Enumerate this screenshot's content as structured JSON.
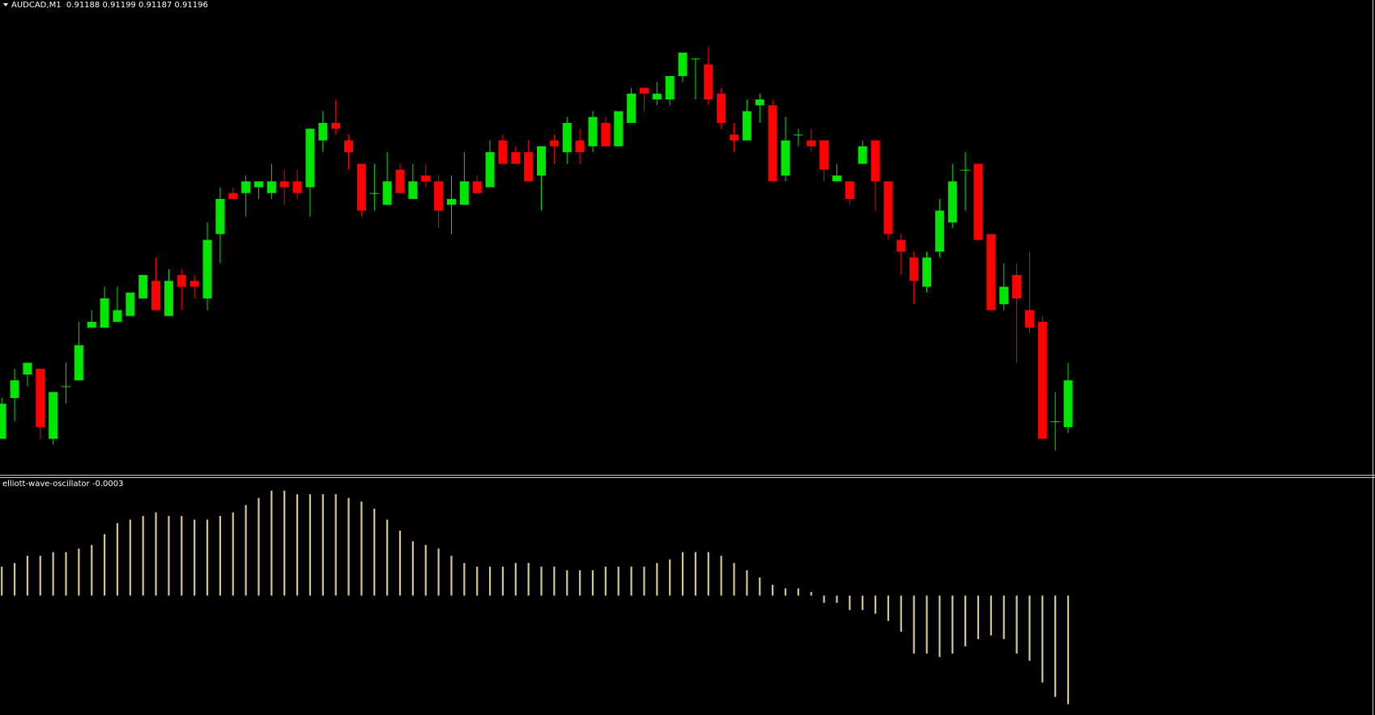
{
  "chart_data": [
    {
      "type": "candlestick",
      "title": "AUDCAD,M1  0.91188 0.91199 0.91187 0.91196",
      "up_color": "#00e600",
      "down_color": "#ff0000",
      "ylim": [
        0.9118,
        0.91261
      ],
      "open": [
        0.91186,
        0.91193,
        0.91197,
        0.91198,
        0.91186,
        0.91195,
        0.91196,
        0.91205,
        0.91205,
        0.91206,
        0.91207,
        0.9121,
        0.91213,
        0.91207,
        0.91214,
        0.91213,
        0.9121,
        0.91221,
        0.91228,
        0.91228,
        0.91229,
        0.91228,
        0.9123,
        0.9123,
        0.91229,
        0.91237,
        0.9124,
        0.91237,
        0.91233,
        0.91228,
        0.91226,
        0.91232,
        0.91227,
        0.91231,
        0.9123,
        0.91226,
        0.91226,
        0.9123,
        0.91229,
        0.91237,
        0.91235,
        0.91235,
        0.91231,
        0.91237,
        0.91235,
        0.91237,
        0.91236,
        0.9124,
        0.91236,
        0.9124,
        0.91246,
        0.91244,
        0.91244,
        0.91248,
        0.91251,
        0.9125,
        0.91245,
        0.91238,
        0.91237,
        0.91243,
        0.91243,
        0.91231,
        0.91238,
        0.91237,
        0.91237,
        0.9123,
        0.9123,
        0.91233,
        0.91237,
        0.9123,
        0.9122,
        0.91217,
        0.91212,
        0.91218,
        0.91223,
        0.91232,
        0.91233,
        0.91221,
        0.91209,
        0.91214,
        0.91208,
        0.91206,
        0.91189,
        0.91188
      ],
      "high": [
        0.91193,
        0.91198,
        0.91199,
        0.91198,
        0.91194,
        0.91199,
        0.91206,
        0.91208,
        0.91212,
        0.91212,
        0.91211,
        0.91214,
        0.91217,
        0.91215,
        0.91215,
        0.91214,
        0.91223,
        0.91229,
        0.91229,
        0.91231,
        0.9123,
        0.91233,
        0.91232,
        0.91232,
        0.91239,
        0.91242,
        0.91244,
        0.91238,
        0.91233,
        0.91233,
        0.91235,
        0.91233,
        0.91233,
        0.91233,
        0.91231,
        0.91231,
        0.91235,
        0.91231,
        0.91237,
        0.91238,
        0.91236,
        0.91237,
        0.91236,
        0.91238,
        0.91241,
        0.91239,
        0.91242,
        0.91241,
        0.91242,
        0.91246,
        0.91246,
        0.91247,
        0.91248,
        0.91252,
        0.91251,
        0.91253,
        0.91246,
        0.9124,
        0.91244,
        0.91245,
        0.91244,
        0.91241,
        0.91239,
        0.91239,
        0.91237,
        0.91233,
        0.9123,
        0.91237,
        0.91237,
        0.9123,
        0.91221,
        0.91218,
        0.91218,
        0.91227,
        0.91233,
        0.91235,
        0.91233,
        0.91221,
        0.91216,
        0.91216,
        0.91218,
        0.91207,
        0.91194,
        0.91199
      ],
      "low": [
        0.91186,
        0.91189,
        0.91195,
        0.91186,
        0.91185,
        0.91192,
        0.91196,
        0.91205,
        0.91205,
        0.91206,
        0.91207,
        0.9121,
        0.91208,
        0.91207,
        0.91208,
        0.9121,
        0.91208,
        0.91216,
        0.91227,
        0.91224,
        0.91227,
        0.91227,
        0.91226,
        0.91227,
        0.91224,
        0.91235,
        0.91238,
        0.91232,
        0.91224,
        0.91225,
        0.91226,
        0.91228,
        0.91227,
        0.91229,
        0.91222,
        0.91221,
        0.91226,
        0.91228,
        0.91229,
        0.91233,
        0.91233,
        0.9123,
        0.91225,
        0.91233,
        0.91233,
        0.91233,
        0.91235,
        0.91236,
        0.91236,
        0.9124,
        0.91242,
        0.91243,
        0.91243,
        0.91247,
        0.91244,
        0.91243,
        0.91239,
        0.91235,
        0.91237,
        0.9124,
        0.9123,
        0.9123,
        0.91236,
        0.91235,
        0.9123,
        0.9123,
        0.91226,
        0.91233,
        0.91225,
        0.9122,
        0.91214,
        0.91209,
        0.91211,
        0.91217,
        0.91222,
        0.91225,
        0.9122,
        0.91208,
        0.91208,
        0.91199,
        0.91204,
        0.91186,
        0.91184,
        0.91187
      ],
      "close": [
        0.91192,
        0.91196,
        0.91199,
        0.91188,
        0.91194,
        0.91195,
        0.91202,
        0.91206,
        0.9121,
        0.91208,
        0.91211,
        0.91214,
        0.91208,
        0.91213,
        0.91212,
        0.91212,
        0.9122,
        0.91227,
        0.91227,
        0.9123,
        0.9123,
        0.9123,
        0.91229,
        0.91228,
        0.91239,
        0.9124,
        0.91239,
        0.91235,
        0.91225,
        0.91228,
        0.9123,
        0.91228,
        0.9123,
        0.9123,
        0.91225,
        0.91227,
        0.9123,
        0.91228,
        0.91235,
        0.91233,
        0.91233,
        0.9123,
        0.91236,
        0.91236,
        0.9124,
        0.91235,
        0.91241,
        0.91236,
        0.91242,
        0.91245,
        0.91245,
        0.91245,
        0.91248,
        0.91252,
        0.91251,
        0.91244,
        0.9124,
        0.91237,
        0.91242,
        0.91244,
        0.9123,
        0.91237,
        0.91238,
        0.91236,
        0.91232,
        0.91231,
        0.91227,
        0.91236,
        0.9123,
        0.91221,
        0.91218,
        0.91213,
        0.91217,
        0.91225,
        0.9123,
        0.91232,
        0.9122,
        0.91208,
        0.91212,
        0.9121,
        0.91205,
        0.91186,
        0.91189,
        0.91196
      ]
    },
    {
      "type": "histogram_oscillator",
      "title": "elliott-wave-oscillator -0.0003",
      "color": "#d6c68c",
      "ylim": [
        -0.00033,
        0.000325
      ],
      "values": [
        8e-05,
        9e-05,
        0.00011,
        0.00011,
        0.00012,
        0.00012,
        0.00013,
        0.00014,
        0.00017,
        0.0002,
        0.00021,
        0.00022,
        0.00023,
        0.00022,
        0.00022,
        0.00021,
        0.00021,
        0.00022,
        0.00023,
        0.00025,
        0.00027,
        0.00029,
        0.00029,
        0.00028,
        0.00028,
        0.00028,
        0.00028,
        0.00027,
        0.00026,
        0.00024,
        0.00021,
        0.00018,
        0.00015,
        0.00014,
        0.00013,
        0.00011,
        9e-05,
        8e-05,
        8e-05,
        8e-05,
        9e-05,
        9e-05,
        8e-05,
        8e-05,
        7e-05,
        7e-05,
        7e-05,
        8e-05,
        8e-05,
        8e-05,
        8e-05,
        9e-05,
        0.0001,
        0.00012,
        0.00012,
        0.00012,
        0.00011,
        9e-05,
        7e-05,
        5e-05,
        3e-05,
        2e-05,
        2e-05,
        1e-05,
        -2e-05,
        -2e-05,
        -4e-05,
        -4e-05,
        -5e-05,
        -7e-05,
        -0.0001,
        -0.00016,
        -0.00016,
        -0.00017,
        -0.00016,
        -0.00014,
        -0.00012,
        -0.00011,
        -0.00012,
        -0.00016,
        -0.00018,
        -0.00024,
        -0.00028,
        -0.0003
      ]
    }
  ]
}
